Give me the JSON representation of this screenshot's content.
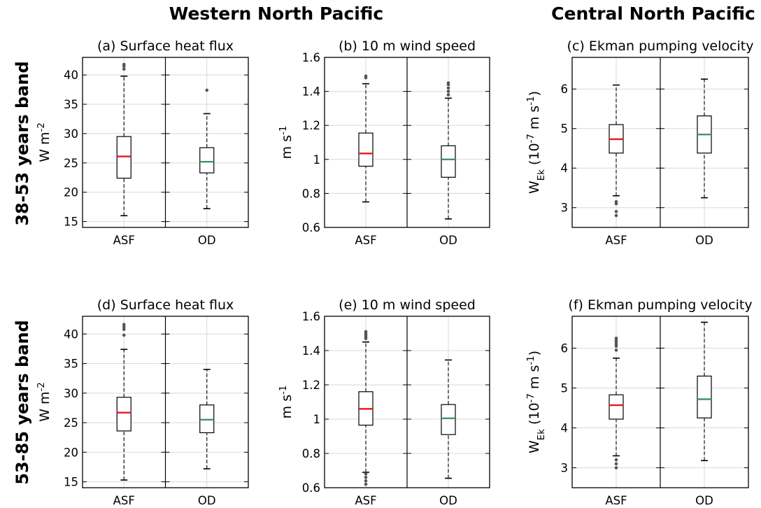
{
  "column_titles": {
    "western": "Western North Pacific",
    "central": "Central North Pacific"
  },
  "row_labels": {
    "row1": "38-53 years band",
    "row2": "53-85 years band"
  },
  "colors": {
    "asf_median": "#e8141e",
    "od_median": "#3a9a5e",
    "outlier": "#555555",
    "grid": "#d9d9d9"
  },
  "chart_data": [
    {
      "type": "box",
      "panel": "a",
      "title": "(a) Surface heat flux",
      "ylabel": "W m^-2",
      "ylim": [
        14,
        43
      ],
      "yticks": [
        15,
        20,
        25,
        30,
        35,
        40
      ],
      "categories": [
        "ASF",
        "OD"
      ],
      "boxes": [
        {
          "name": "ASF",
          "whisker_low": 16,
          "q1": 22.4,
          "median": 26.1,
          "q3": 29.5,
          "whisker_high": 39.8,
          "outliers": [
            41.0,
            41.5,
            41.8
          ]
        },
        {
          "name": "OD",
          "whisker_low": 17.2,
          "q1": 23.3,
          "median": 25.2,
          "q3": 27.6,
          "whisker_high": 33.4,
          "outliers": [
            37.4
          ]
        }
      ]
    },
    {
      "type": "box",
      "panel": "b",
      "title": "(b) 10 m wind speed",
      "ylabel": "m s^-1",
      "ylim": [
        0.6,
        1.6
      ],
      "yticks": [
        0.6,
        0.8,
        1,
        1.2,
        1.4,
        1.6
      ],
      "categories": [
        "ASF",
        "OD"
      ],
      "boxes": [
        {
          "name": "ASF",
          "whisker_low": 0.75,
          "q1": 0.96,
          "median": 1.035,
          "q3": 1.155,
          "whisker_high": 1.445,
          "outliers": [
            1.48,
            1.49
          ]
        },
        {
          "name": "OD",
          "whisker_low": 0.65,
          "q1": 0.895,
          "median": 1.0,
          "q3": 1.08,
          "whisker_high": 1.36,
          "outliers": [
            1.38,
            1.4,
            1.42,
            1.44,
            1.45
          ]
        }
      ]
    },
    {
      "type": "box",
      "panel": "c",
      "title": "(c) Ekman pumping velocity",
      "ylabel": "W_Ek (10^-7 m s^-1)",
      "ylim": [
        2.5,
        6.8
      ],
      "yticks": [
        3,
        4,
        5,
        6
      ],
      "categories": [
        "ASF",
        "OD"
      ],
      "boxes": [
        {
          "name": "ASF",
          "whisker_low": 3.3,
          "q1": 4.38,
          "median": 4.73,
          "q3": 5.1,
          "whisker_high": 6.1,
          "outliers": [
            2.8,
            2.9,
            3.1,
            3.15
          ]
        },
        {
          "name": "OD",
          "whisker_low": 3.25,
          "q1": 4.38,
          "median": 4.85,
          "q3": 5.32,
          "whisker_high": 6.25,
          "outliers": []
        }
      ]
    },
    {
      "type": "box",
      "panel": "d",
      "title": "(d) Surface heat flux",
      "ylabel": "W m^-2",
      "ylim": [
        14,
        43
      ],
      "yticks": [
        15,
        20,
        25,
        30,
        35,
        40
      ],
      "categories": [
        "ASF",
        "OD"
      ],
      "boxes": [
        {
          "name": "ASF",
          "whisker_low": 15.3,
          "q1": 23.6,
          "median": 26.7,
          "q3": 29.3,
          "whisker_high": 37.4,
          "outliers": [
            39.8,
            40.8,
            41.2,
            41.6
          ]
        },
        {
          "name": "OD",
          "whisker_low": 17.2,
          "q1": 23.3,
          "median": 25.5,
          "q3": 28.0,
          "whisker_high": 34.0,
          "outliers": []
        }
      ]
    },
    {
      "type": "box",
      "panel": "e",
      "title": "(e) 10 m wind speed",
      "ylabel": "m s^-1",
      "ylim": [
        0.6,
        1.6
      ],
      "yticks": [
        0.6,
        0.8,
        1,
        1.2,
        1.4,
        1.6
      ],
      "categories": [
        "ASF",
        "OD"
      ],
      "boxes": [
        {
          "name": "ASF",
          "whisker_low": 0.69,
          "q1": 0.965,
          "median": 1.06,
          "q3": 1.16,
          "whisker_high": 1.45,
          "outliers": [
            0.62,
            0.64,
            0.66,
            0.68,
            1.47,
            1.48,
            1.49,
            1.5,
            1.51
          ]
        },
        {
          "name": "OD",
          "whisker_low": 0.655,
          "q1": 0.91,
          "median": 1.005,
          "q3": 1.085,
          "whisker_high": 1.345,
          "outliers": []
        }
      ]
    },
    {
      "type": "box",
      "panel": "f",
      "title": "(f) Ekman pumping velocity",
      "ylabel": "W_Ek (10^-7 m s^-1)",
      "ylim": [
        2.5,
        6.8
      ],
      "yticks": [
        3,
        4,
        5,
        6
      ],
      "categories": [
        "ASF",
        "OD"
      ],
      "boxes": [
        {
          "name": "ASF",
          "whisker_low": 3.3,
          "q1": 4.22,
          "median": 4.57,
          "q3": 4.83,
          "whisker_high": 5.75,
          "outliers": [
            3.0,
            3.1,
            3.2,
            5.95,
            6.05,
            6.1,
            6.15,
            6.2,
            6.25
          ]
        },
        {
          "name": "OD",
          "whisker_low": 3.18,
          "q1": 4.25,
          "median": 4.72,
          "q3": 5.3,
          "whisker_high": 6.65,
          "outliers": []
        }
      ]
    }
  ]
}
